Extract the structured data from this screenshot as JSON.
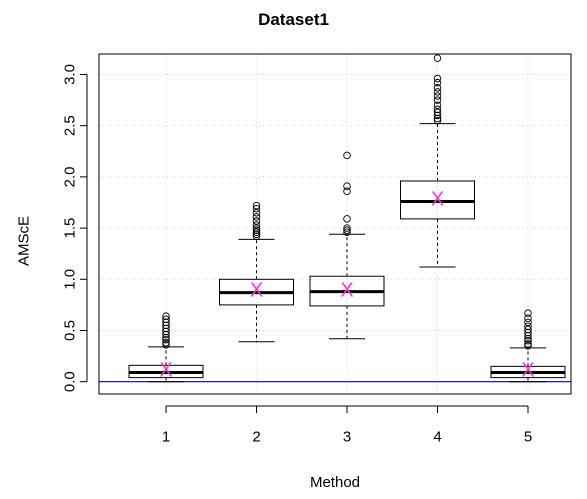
{
  "chart_data": {
    "type": "box",
    "title": "Dataset1",
    "xlabel": "Method",
    "ylabel": "AMScE",
    "categories": [
      "1",
      "2",
      "3",
      "4",
      "5"
    ],
    "ylim": [
      -0.12,
      3.2
    ],
    "yticks": [
      "0.0",
      "0.5",
      "1.0",
      "1.5",
      "2.0",
      "2.5",
      "3.0"
    ],
    "grid": true,
    "reference_line": {
      "y": 0.0,
      "color": "#0000cc"
    },
    "mean_marker": {
      "symbol": "X",
      "color": "#ff33cc"
    },
    "boxes": [
      {
        "category": "1",
        "whisker_low": 0.0,
        "q1": 0.04,
        "median": 0.09,
        "q3": 0.16,
        "whisker_high": 0.34,
        "mean": 0.11,
        "outliers": [
          0.36,
          0.38,
          0.41,
          0.43,
          0.46,
          0.49,
          0.52,
          0.55,
          0.58,
          0.61,
          0.64
        ]
      },
      {
        "category": "2",
        "whisker_low": 0.39,
        "q1": 0.75,
        "median": 0.87,
        "q3": 1.0,
        "whisker_high": 1.39,
        "mean": 0.89,
        "outliers": [
          1.42,
          1.44,
          1.46,
          1.48,
          1.5,
          1.53,
          1.57,
          1.61,
          1.65,
          1.69,
          1.72
        ]
      },
      {
        "category": "3",
        "whisker_low": 0.42,
        "q1": 0.74,
        "median": 0.88,
        "q3": 1.03,
        "whisker_high": 1.44,
        "mean": 0.89,
        "outliers": [
          1.46,
          1.48,
          1.5,
          1.59,
          1.86,
          1.91,
          2.21
        ]
      },
      {
        "category": "4",
        "whisker_low": 1.12,
        "q1": 1.59,
        "median": 1.76,
        "q3": 1.96,
        "whisker_high": 2.52,
        "mean": 1.78,
        "outliers": [
          2.55,
          2.57,
          2.6,
          2.63,
          2.66,
          2.7,
          2.75,
          2.79,
          2.83,
          2.87,
          2.92,
          2.96,
          3.16
        ]
      },
      {
        "category": "5",
        "whisker_low": 0.0,
        "q1": 0.04,
        "median": 0.09,
        "q3": 0.15,
        "whisker_high": 0.33,
        "mean": 0.11,
        "outliers": [
          0.35,
          0.37,
          0.4,
          0.42,
          0.45,
          0.48,
          0.51,
          0.54,
          0.58,
          0.62,
          0.67
        ]
      }
    ]
  }
}
